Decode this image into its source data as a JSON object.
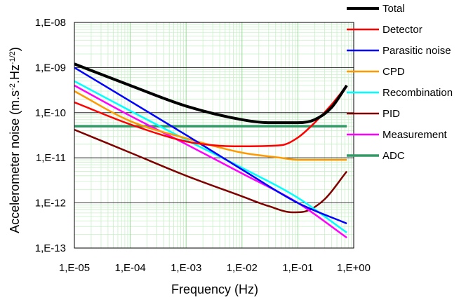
{
  "chart_data": {
    "type": "line",
    "xscale": "log",
    "yscale": "log",
    "xlim": [
      1e-05,
      1
    ],
    "ylim": [
      1e-13,
      1e-08
    ],
    "xlabel": "Frequency (Hz)",
    "ylabel_main": "Accelerometer noise (m.s",
    "ylabel_sup1": "-2",
    "ylabel_mid": ".Hz",
    "ylabel_sup2": "-1/2",
    "ylabel_end": ")",
    "x_ticks": [
      {
        "value": 1e-05,
        "label": "1,E-05"
      },
      {
        "value": 0.0001,
        "label": "1,E-04"
      },
      {
        "value": 0.001,
        "label": "1,E-03"
      },
      {
        "value": 0.01,
        "label": "1,E-02"
      },
      {
        "value": 0.1,
        "label": "1,E-01"
      },
      {
        "value": 1,
        "label": "1,E+00"
      }
    ],
    "y_ticks": [
      {
        "value": 1e-08,
        "label": "1,E-08"
      },
      {
        "value": 1e-09,
        "label": "1,E-09"
      },
      {
        "value": 1e-10,
        "label": "1,E-10"
      },
      {
        "value": 1e-11,
        "label": "1,E-11"
      },
      {
        "value": 1e-12,
        "label": "1,E-12"
      },
      {
        "value": 1e-13,
        "label": "1,E-13"
      }
    ],
    "grid": true,
    "legend_position": "right",
    "series": [
      {
        "name": "Total",
        "color": "#000000",
        "width": 4,
        "points": [
          [
            1e-05,
            1.2e-09
          ],
          [
            0.0001,
            4e-10
          ],
          [
            0.001,
            1.4e-10
          ],
          [
            0.01,
            7e-11
          ],
          [
            0.03,
            6e-11
          ],
          [
            0.1,
            6e-11
          ],
          [
            0.2,
            7e-11
          ],
          [
            0.4,
            1.3e-10
          ],
          [
            0.75,
            4e-10
          ]
        ]
      },
      {
        "name": "Detector",
        "color": "#ff0000",
        "width": 2.5,
        "points": [
          [
            1e-05,
            1.7e-10
          ],
          [
            0.0001,
            5.5e-11
          ],
          [
            0.001,
            2.3e-11
          ],
          [
            0.003,
            1.9e-11
          ],
          [
            0.01,
            1.8e-11
          ],
          [
            0.05,
            1.9e-11
          ],
          [
            0.1,
            2.8e-11
          ],
          [
            0.2,
            6e-11
          ],
          [
            0.4,
            1.5e-10
          ],
          [
            0.75,
            4e-10
          ]
        ]
      },
      {
        "name": "Parasitic noise",
        "color": "#0000ff",
        "width": 2.5,
        "points": [
          [
            1e-05,
            1e-09
          ],
          [
            0.0001,
            1.8e-10
          ],
          [
            0.001,
            3.2e-11
          ],
          [
            0.01,
            5.5e-12
          ],
          [
            0.1,
            1e-12
          ],
          [
            0.75,
            3.5e-13
          ]
        ]
      },
      {
        "name": "CPD",
        "color": "#ff9900",
        "width": 2.5,
        "points": [
          [
            1e-05,
            3e-10
          ],
          [
            0.0001,
            6.5e-11
          ],
          [
            0.001,
            2.7e-11
          ],
          [
            0.01,
            1.3e-11
          ],
          [
            0.05,
            1e-11
          ],
          [
            0.1,
            9e-12
          ],
          [
            0.75,
            9e-12
          ]
        ]
      },
      {
        "name": "Recombination",
        "color": "#00ffff",
        "width": 2.5,
        "points": [
          [
            1e-05,
            5e-10
          ],
          [
            0.0001,
            1.1e-10
          ],
          [
            0.001,
            2.5e-11
          ],
          [
            0.01,
            6e-12
          ],
          [
            0.1,
            1.3e-12
          ],
          [
            0.75,
            2.2e-13
          ]
        ]
      },
      {
        "name": "PID",
        "color": "#800000",
        "width": 2.5,
        "points": [
          [
            1e-05,
            4.2e-11
          ],
          [
            0.0001,
            1.3e-11
          ],
          [
            0.001,
            4e-12
          ],
          [
            0.01,
            1.4e-12
          ],
          [
            0.03,
            8.5e-13
          ],
          [
            0.08,
            6.2e-13
          ],
          [
            0.12,
            6.3e-13
          ],
          [
            0.3,
            1.2e-12
          ],
          [
            0.75,
            5e-12
          ]
        ]
      },
      {
        "name": "Measurement",
        "color": "#ff00ff",
        "width": 2.5,
        "points": [
          [
            1e-05,
            4e-10
          ],
          [
            0.0001,
            8.5e-11
          ],
          [
            0.001,
            2e-11
          ],
          [
            0.01,
            4.5e-12
          ],
          [
            0.1,
            1e-12
          ],
          [
            0.75,
            1.7e-13
          ]
        ]
      },
      {
        "name": "ADC",
        "color": "#339966",
        "width": 3.5,
        "points": [
          [
            1e-05,
            5e-11
          ],
          [
            0.75,
            5e-11
          ]
        ]
      }
    ]
  }
}
